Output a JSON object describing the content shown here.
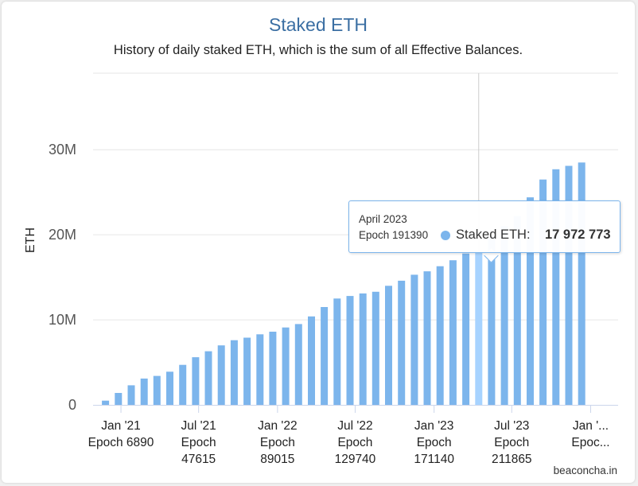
{
  "chart_data": {
    "type": "bar",
    "title": "Staked ETH",
    "subtitle": "History of daily staked ETH, which is the sum of all Effective Balances.",
    "ylabel": "ETH",
    "ylim": [
      0,
      39000000
    ],
    "yticks": [
      {
        "value": 0,
        "label": "0"
      },
      {
        "value": 10000000,
        "label": "10M"
      },
      {
        "value": 20000000,
        "label": "20M"
      },
      {
        "value": 30000000,
        "label": "30M"
      }
    ],
    "x_axis": "datetime",
    "xlim": [
      "2020-10-28",
      "2024-03-05"
    ],
    "xticks": [
      {
        "date": "2021-01-01",
        "label": "Jan '21",
        "sublabel": "Epoch 6890",
        "multiline": false
      },
      {
        "date": "2021-07-01",
        "label": "Jul '21",
        "sublabel": "Epoch 47615",
        "multiline": true
      },
      {
        "date": "2022-01-01",
        "label": "Jan '22",
        "sublabel": "Epoch 89015",
        "multiline": true
      },
      {
        "date": "2022-07-01",
        "label": "Jul '22",
        "sublabel": "Epoch 129740",
        "multiline": true
      },
      {
        "date": "2023-01-01",
        "label": "Jan '23",
        "sublabel": "Epoch 171140",
        "multiline": true
      },
      {
        "date": "2023-07-01",
        "label": "Jul '23",
        "sublabel": "Epoch 211865",
        "multiline": true
      },
      {
        "date": "2024-01-01",
        "label": "Jan '...",
        "sublabel": "Epoc...",
        "multiline": true
      }
    ],
    "series": [
      {
        "name": "Staked ETH",
        "color": "#7cb5ec",
        "hover_color": "#a7d3ff",
        "points": [
          {
            "x": "2020-11-26",
            "y": 500000
          },
          {
            "x": "2020-12-26",
            "y": 1400000
          },
          {
            "x": "2021-01-25",
            "y": 2300000
          },
          {
            "x": "2021-02-24",
            "y": 3100000
          },
          {
            "x": "2021-03-26",
            "y": 3400000
          },
          {
            "x": "2021-04-25",
            "y": 3900000
          },
          {
            "x": "2021-05-25",
            "y": 4700000
          },
          {
            "x": "2021-06-24",
            "y": 5600000
          },
          {
            "x": "2021-07-24",
            "y": 6300000
          },
          {
            "x": "2021-08-23",
            "y": 7000000
          },
          {
            "x": "2021-09-22",
            "y": 7600000
          },
          {
            "x": "2021-10-22",
            "y": 7900000
          },
          {
            "x": "2021-11-21",
            "y": 8300000
          },
          {
            "x": "2021-12-21",
            "y": 8600000
          },
          {
            "x": "2022-01-20",
            "y": 9100000
          },
          {
            "x": "2022-02-19",
            "y": 9500000
          },
          {
            "x": "2022-03-21",
            "y": 10400000
          },
          {
            "x": "2022-04-20",
            "y": 11500000
          },
          {
            "x": "2022-05-20",
            "y": 12500000
          },
          {
            "x": "2022-06-19",
            "y": 12800000
          },
          {
            "x": "2022-07-19",
            "y": 13100000
          },
          {
            "x": "2022-08-18",
            "y": 13300000
          },
          {
            "x": "2022-09-17",
            "y": 14000000
          },
          {
            "x": "2022-10-17",
            "y": 14600000
          },
          {
            "x": "2022-11-16",
            "y": 15300000
          },
          {
            "x": "2022-12-16",
            "y": 15700000
          },
          {
            "x": "2023-01-15",
            "y": 16300000
          },
          {
            "x": "2023-02-14",
            "y": 17000000
          },
          {
            "x": "2023-03-16",
            "y": 17800000
          },
          {
            "x": "2023-04-15",
            "y": 17972773
          },
          {
            "x": "2023-05-15",
            "y": 19800000
          },
          {
            "x": "2023-06-14",
            "y": 21000000
          },
          {
            "x": "2023-07-14",
            "y": 22200000
          },
          {
            "x": "2023-08-13",
            "y": 24400000
          },
          {
            "x": "2023-09-12",
            "y": 26500000
          },
          {
            "x": "2023-10-12",
            "y": 27700000
          },
          {
            "x": "2023-11-11",
            "y": 28100000
          },
          {
            "x": "2023-12-11",
            "y": 28500000
          }
        ]
      }
    ],
    "highlighted_point": "2023-04-15",
    "legend": false,
    "grid": true
  },
  "tooltip": {
    "date": "April 2023",
    "epoch": "Epoch 191390",
    "series_label": "Staked ETH:",
    "value": "17 972 773"
  },
  "credit": "beaconcha.in"
}
